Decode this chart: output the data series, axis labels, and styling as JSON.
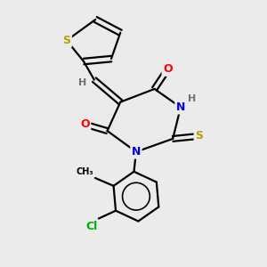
{
  "background_color": "#ebebeb",
  "bond_color": "#000000",
  "atom_colors": {
    "S": "#b8a000",
    "N": "#0000ee",
    "O": "#ff0000",
    "Cl": "#00aa00",
    "H": "#707070",
    "C": "#000000"
  },
  "lw": 1.6,
  "fontsize": 9
}
